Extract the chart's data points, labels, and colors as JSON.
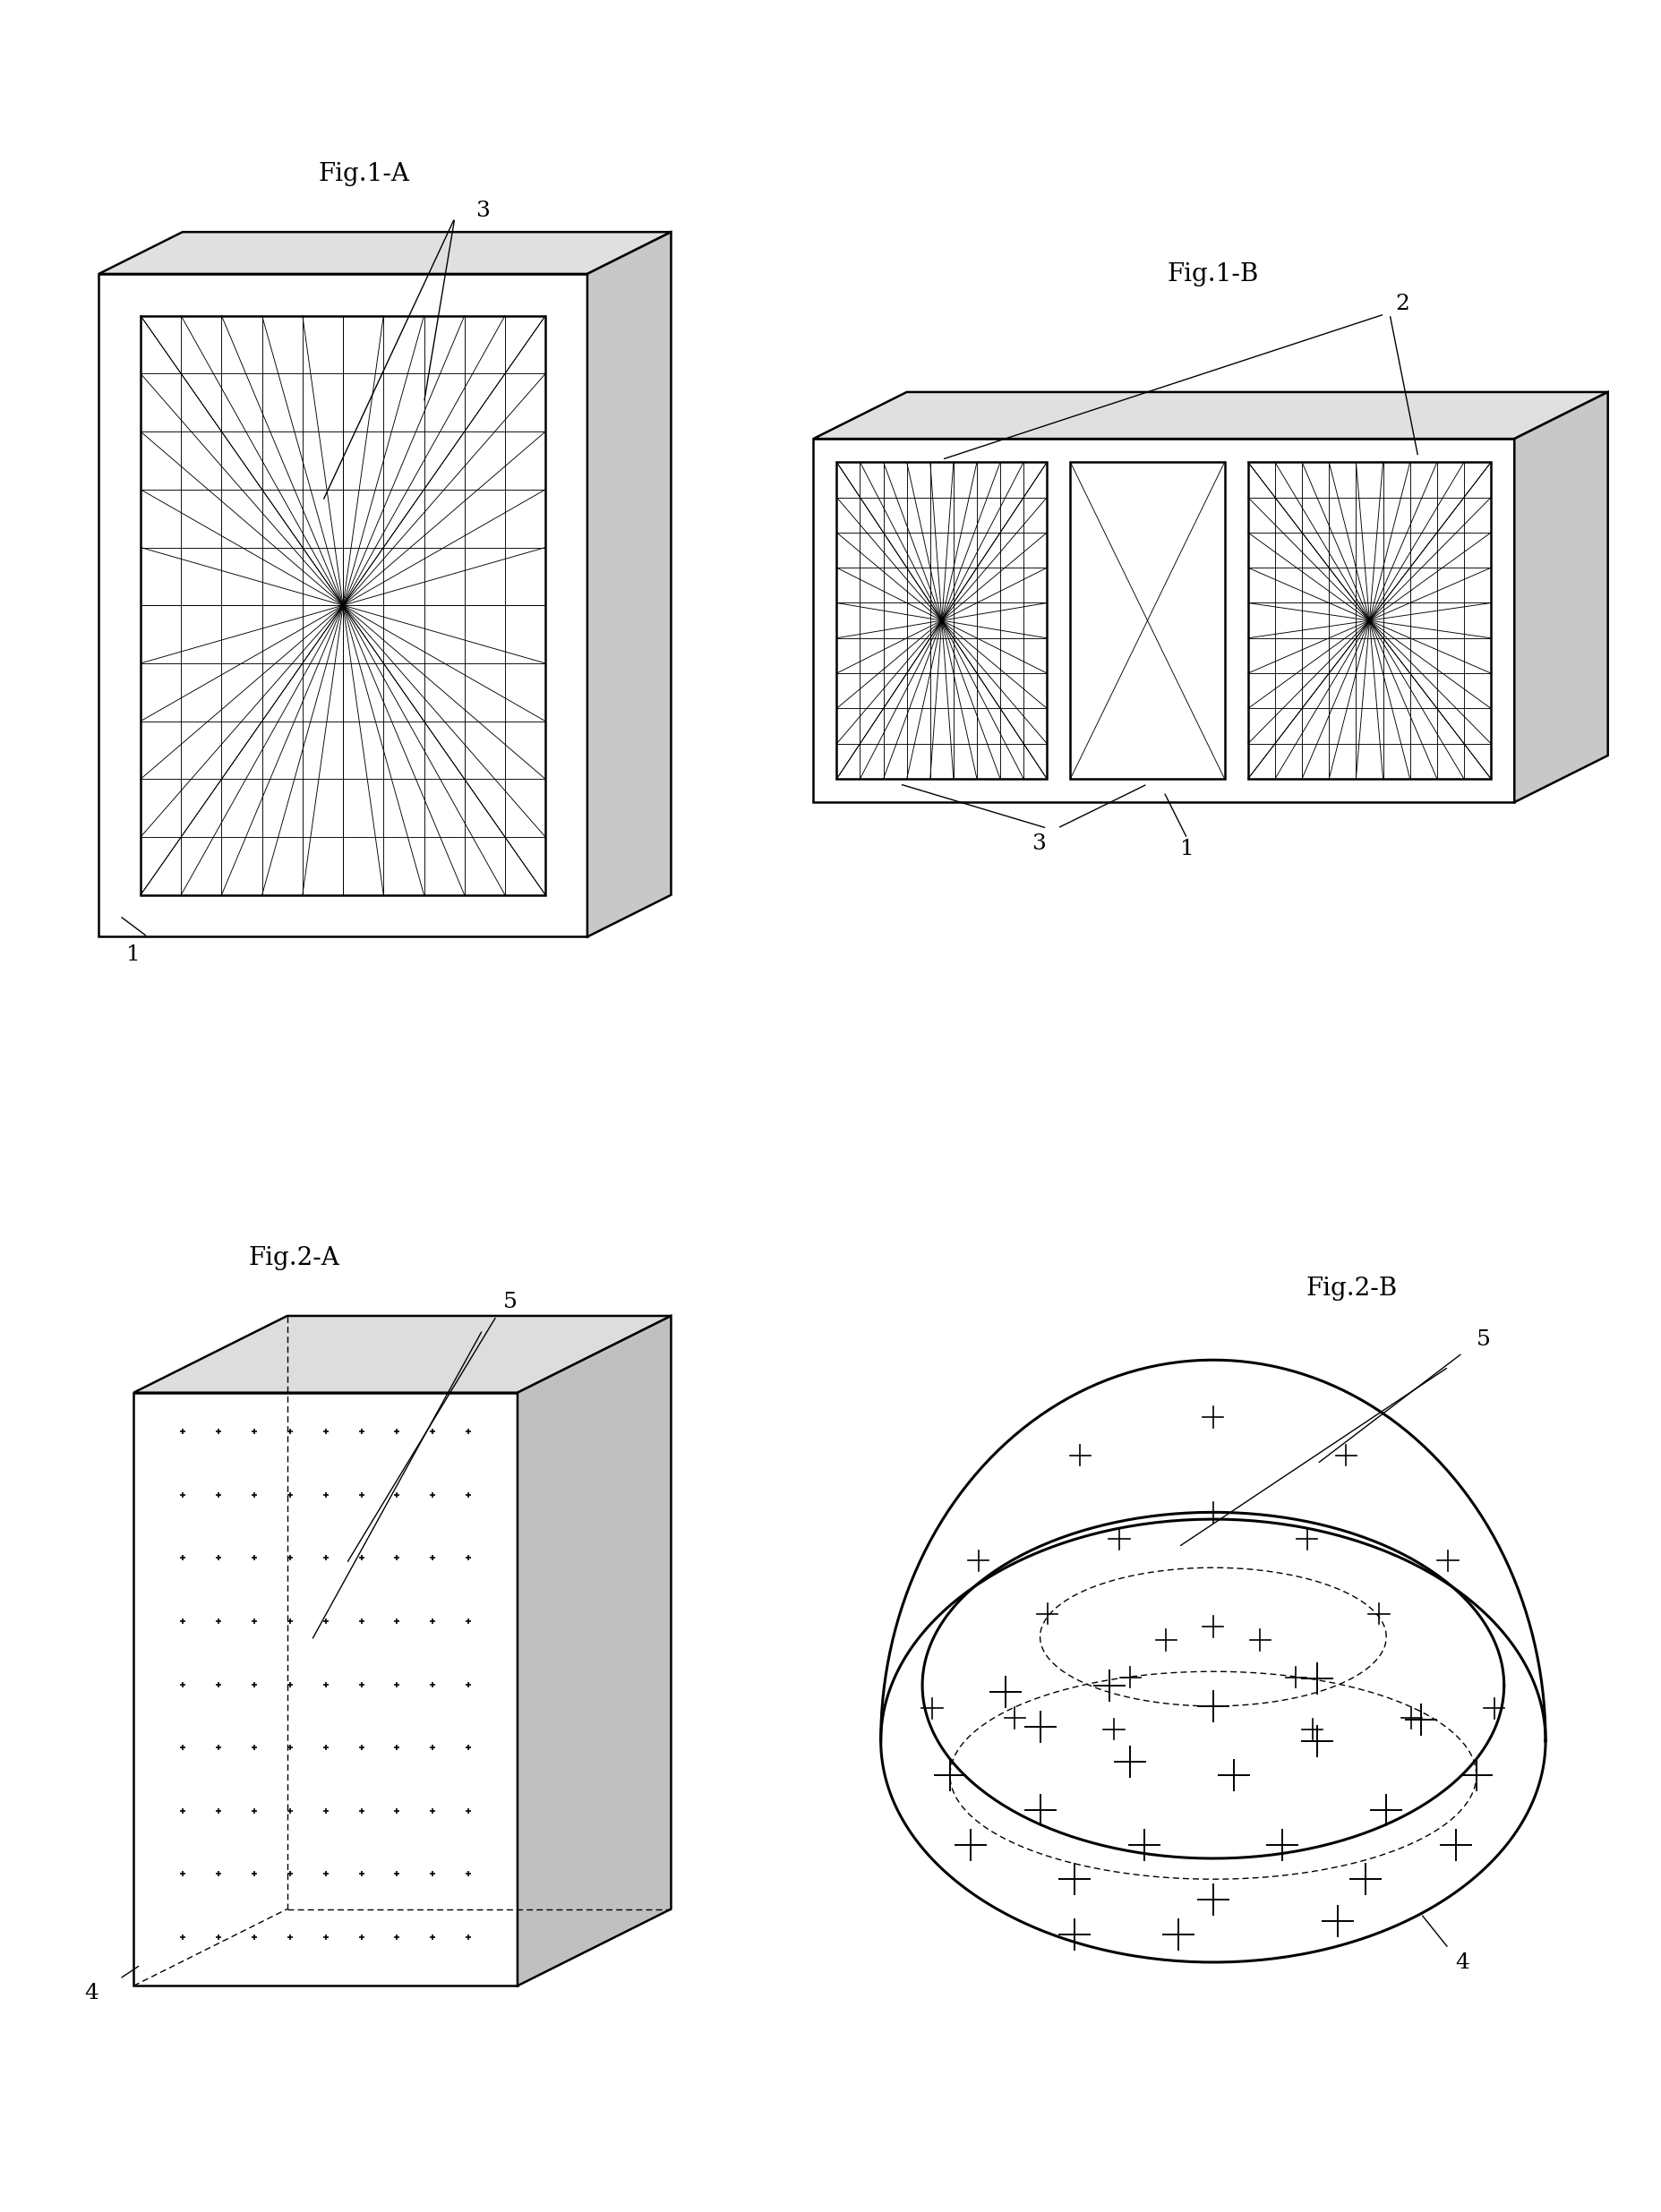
{
  "bg_color": "#ffffff",
  "line_color": "#000000",
  "title_fontsize": 20,
  "annot_fontsize": 18,
  "fig1a_title": "Fig.1-A",
  "fig1b_title": "Fig.1-B",
  "fig2a_title": "Fig.2-A",
  "fig2b_title": "Fig.2-B"
}
